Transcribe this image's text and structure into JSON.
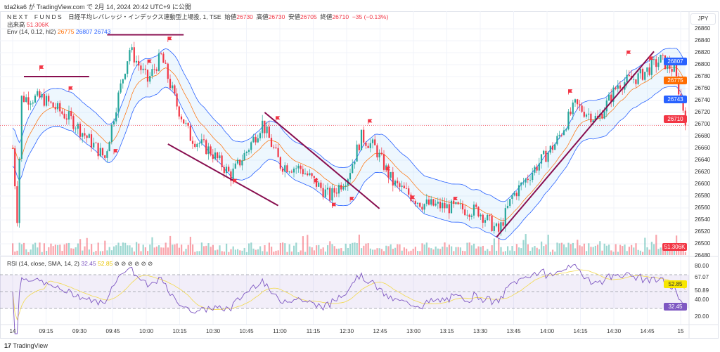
{
  "published": "tda2ka6 が TradingView.com で 2月 14, 2024 20:42 UTC+9 に公開",
  "legend": {
    "symbol": "N E X T    F U N D S    日経平均レバレッジ・インデックス連動型上場投, 1, TSE",
    "open_label": "始値",
    "open": "26730",
    "high_label": "高値",
    "high": "26730",
    "low_label": "安値",
    "low": "26705",
    "close_label": "終値",
    "close": "26710",
    "change": "−35 (−0.13%)",
    "volume_label": "出来高",
    "volume": "51.306K",
    "env_label": "Env (14, 0.12, hl2)",
    "env_basis": "26775",
    "env_upper": "26807",
    "env_lower": "26743",
    "rsi_label": "RSI (14, close, SMA, 14, 2)",
    "rsi": "32.45",
    "rsi_ma": "52.85",
    "rsi_icons": [
      "⊘",
      "⊘",
      "⊘",
      "⊘",
      "⊘",
      "⊘"
    ]
  },
  "currency": "JPY",
  "price_ticks": [
    "26860",
    "26840",
    "26820",
    "26800",
    "26780",
    "26760",
    "26740",
    "26720",
    "26700",
    "26680",
    "26660",
    "26640",
    "26620",
    "26600",
    "26580",
    "26560",
    "26540",
    "26520",
    "26500",
    "26480"
  ],
  "rsi_ticks": [
    "80.00",
    "67.07",
    "50.89",
    "40.00",
    "20.00"
  ],
  "tags": {
    "upper": "26807",
    "basis": "26775",
    "lower": "26743",
    "last": "26710",
    "volume": "51.306K",
    "rsi_ma": "52.85",
    "rsi": "32.45"
  },
  "colors": {
    "up": "#26a69a",
    "down": "#f23645",
    "env_upper": "#2962ff",
    "env_basis": "#ff6d00",
    "rsi": "#7e57c2",
    "rsi_ma": "#f2d94e",
    "drawing": "#880e4f"
  },
  "time_labels": [
    "14",
    "09:15",
    "09:30",
    "09:45",
    "10:00",
    "10:15",
    "10:30",
    "10:45",
    "11:00",
    "11:15",
    "12:30",
    "12:45",
    "13:00",
    "13:15",
    "13:30",
    "13:45",
    "14:00",
    "14:15",
    "14:30",
    "14:45",
    "15"
  ],
  "footer": "TradingView",
  "chart_data": {
    "type": "candlestick",
    "bars": 300,
    "price_range": [
      26480,
      26870
    ],
    "rsi_range": [
      20,
      80
    ],
    "keypoints": [
      [
        0,
        26660
      ],
      [
        2,
        26545
      ],
      [
        4,
        26744
      ],
      [
        13,
        26744
      ],
      [
        26,
        26708
      ],
      [
        41,
        26644
      ],
      [
        46,
        26732
      ],
      [
        52,
        26826
      ],
      [
        60,
        26773
      ],
      [
        66,
        26814
      ],
      [
        73,
        26732
      ],
      [
        79,
        26679
      ],
      [
        88,
        26655
      ],
      [
        97,
        26614
      ],
      [
        104,
        26655
      ],
      [
        111,
        26702
      ],
      [
        119,
        26632
      ],
      [
        128,
        26626
      ],
      [
        141,
        26579
      ],
      [
        149,
        26614
      ],
      [
        155,
        26679
      ],
      [
        161,
        26661
      ],
      [
        169,
        26602
      ],
      [
        182,
        26567
      ],
      [
        194,
        26561
      ],
      [
        207,
        26555
      ],
      [
        216,
        26520
      ],
      [
        222,
        26579
      ],
      [
        232,
        26626
      ],
      [
        241,
        26667
      ],
      [
        250,
        26732
      ],
      [
        260,
        26708
      ],
      [
        269,
        26767
      ],
      [
        278,
        26779
      ],
      [
        288,
        26808
      ],
      [
        294,
        26791
      ],
      [
        299,
        26710
      ]
    ],
    "trendlines": [
      [
        [
          5,
          26780
        ],
        [
          34,
          26780
        ]
      ],
      [
        [
          42,
          26850
        ],
        [
          76,
          26850
        ]
      ],
      [
        [
          69,
          26667
        ],
        [
          118,
          26564
        ]
      ],
      [
        [
          112,
          26720
        ],
        [
          163,
          26559
        ]
      ],
      [
        [
          215,
          26511
        ],
        [
          285,
          26822
        ]
      ]
    ],
    "flags": [
      [
        12,
        26790
      ],
      [
        25,
        26755
      ],
      [
        45,
        26650
      ],
      [
        60,
        26800
      ],
      [
        69,
        26838
      ],
      [
        98,
        26600
      ],
      [
        117,
        26705
      ],
      [
        134,
        26600
      ],
      [
        142,
        26560
      ],
      [
        150,
        26570
      ],
      [
        158,
        26700
      ],
      [
        166,
        26620
      ],
      [
        177,
        26572
      ],
      [
        196,
        26570
      ],
      [
        247,
        26750
      ],
      [
        273,
        26815
      ],
      [
        283,
        26805
      ]
    ]
  }
}
